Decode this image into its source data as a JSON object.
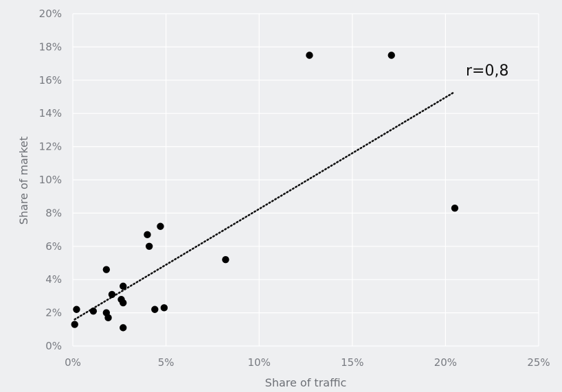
{
  "chart_data": {
    "type": "scatter",
    "title": "",
    "xlabel": "Share of traffic",
    "ylabel": "Share of market",
    "xlim": [
      0,
      25
    ],
    "ylim": [
      0,
      20
    ],
    "x_ticks": [
      "0%",
      "5%",
      "10%",
      "15%",
      "20%",
      "25%"
    ],
    "y_ticks": [
      "0%",
      "2%",
      "4%",
      "6%",
      "8%",
      "10%",
      "12%",
      "14%",
      "16%",
      "18%",
      "20%"
    ],
    "grid": true,
    "points": [
      {
        "x": 0.1,
        "y": 1.3
      },
      {
        "x": 0.2,
        "y": 2.2
      },
      {
        "x": 1.1,
        "y": 2.1
      },
      {
        "x": 1.8,
        "y": 4.6
      },
      {
        "x": 1.8,
        "y": 2.0
      },
      {
        "x": 1.9,
        "y": 1.7
      },
      {
        "x": 2.1,
        "y": 3.1
      },
      {
        "x": 2.6,
        "y": 2.8
      },
      {
        "x": 2.7,
        "y": 3.6
      },
      {
        "x": 2.7,
        "y": 2.6
      },
      {
        "x": 2.7,
        "y": 1.1
      },
      {
        "x": 4.0,
        "y": 6.7
      },
      {
        "x": 4.1,
        "y": 6.0
      },
      {
        "x": 4.4,
        "y": 2.2
      },
      {
        "x": 4.7,
        "y": 7.2
      },
      {
        "x": 4.9,
        "y": 2.3
      },
      {
        "x": 8.2,
        "y": 5.2
      },
      {
        "x": 12.7,
        "y": 17.5
      },
      {
        "x": 17.1,
        "y": 17.5
      },
      {
        "x": 20.5,
        "y": 8.3
      }
    ],
    "trendline": {
      "style": "dotted",
      "x": [
        0.1,
        20.5
      ],
      "y": [
        1.6,
        15.3
      ]
    },
    "annotation": "r=0,8"
  }
}
